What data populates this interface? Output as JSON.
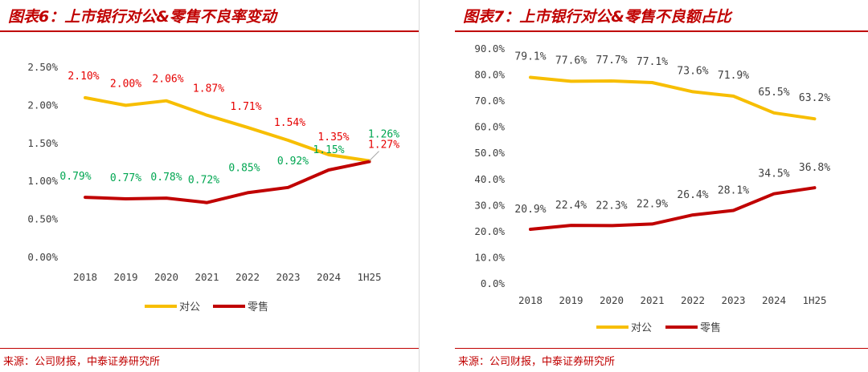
{
  "colors": {
    "corporate": "#f7be00",
    "retail": "#c00000",
    "label_red": "#e60000",
    "label_green": "#00a651",
    "axis_text": "#404040",
    "accent": "#c00000"
  },
  "chart_data": [
    {
      "type": "line",
      "title": "图表6：上市银行对公&零售不良率变动",
      "source": "来源：公司财报，中泰证券研究所",
      "categories": [
        "2018",
        "2019",
        "2020",
        "2021",
        "2022",
        "2023",
        "2024",
        "1H25"
      ],
      "y_ticks": [
        "0.00%",
        "0.50%",
        "1.00%",
        "1.50%",
        "2.00%",
        "2.50%"
      ],
      "ylim": [
        0,
        2.5
      ],
      "gridlines": false,
      "legend_position": "bottom",
      "series": [
        {
          "name": "对公",
          "color": "#f7be00",
          "values": [
            2.1,
            2.0,
            2.06,
            1.87,
            1.71,
            1.54,
            1.35,
            1.27
          ],
          "labels": [
            "2.10%",
            "2.00%",
            "2.06%",
            "1.87%",
            "1.71%",
            "1.54%",
            "1.35%",
            "1.27%"
          ]
        },
        {
          "name": "零售",
          "color": "#c00000",
          "values": [
            0.79,
            0.77,
            0.78,
            0.72,
            0.85,
            0.92,
            1.15,
            1.26
          ],
          "labels": [
            "0.79%",
            "0.77%",
            "0.78%",
            "0.72%",
            "0.85%",
            "0.92%",
            "1.15%",
            "1.26%"
          ]
        }
      ]
    },
    {
      "type": "line",
      "title": "图表7：上市银行对公&零售不良额占比",
      "source": "来源：公司财报，中泰证券研究所",
      "categories": [
        "2018",
        "2019",
        "2020",
        "2021",
        "2022",
        "2023",
        "2024",
        "1H25"
      ],
      "y_ticks": [
        "0.0%",
        "10.0%",
        "20.0%",
        "30.0%",
        "40.0%",
        "50.0%",
        "60.0%",
        "70.0%",
        "80.0%",
        "90.0%"
      ],
      "ylim": [
        0,
        90
      ],
      "gridlines": false,
      "legend_position": "bottom",
      "series": [
        {
          "name": "对公",
          "color": "#f7be00",
          "values": [
            79.1,
            77.6,
            77.7,
            77.1,
            73.6,
            71.9,
            65.5,
            63.2
          ],
          "labels": [
            "79.1%",
            "77.6%",
            "77.7%",
            "77.1%",
            "73.6%",
            "71.9%",
            "65.5%",
            "63.2%"
          ]
        },
        {
          "name": "零售",
          "color": "#c00000",
          "values": [
            20.9,
            22.4,
            22.3,
            22.9,
            26.4,
            28.1,
            34.5,
            36.8
          ],
          "labels": [
            "20.9%",
            "22.4%",
            "22.3%",
            "22.9%",
            "26.4%",
            "28.1%",
            "34.5%",
            "36.8%"
          ]
        }
      ]
    }
  ]
}
